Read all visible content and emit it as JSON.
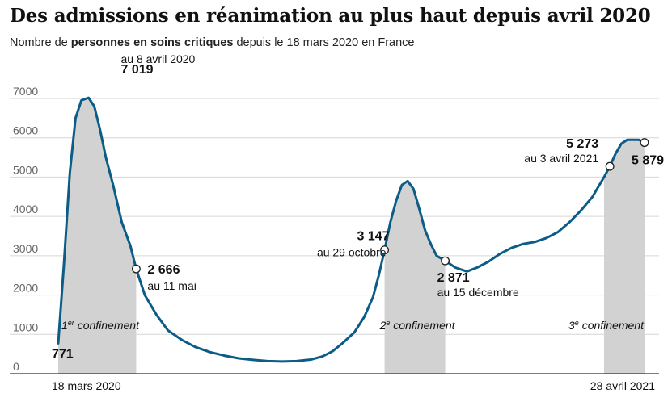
{
  "header": {
    "title": "Des admissions en réanimation au plus haut depuis avril 2020",
    "subtitle_pre": "Nombre de ",
    "subtitle_bold": "personnes en soins critiques",
    "subtitle_post": " depuis le 18 mars 2020 en France"
  },
  "chart_data": {
    "type": "line",
    "title": "Des admissions en réanimation au plus haut depuis avril 2020",
    "ylabel": "Nombre de personnes en soins critiques",
    "xlabel": "",
    "x_start_date": "2020-03-18",
    "x_end_date": "2021-04-28",
    "ylim": [
      0,
      7000
    ],
    "yticks": [
      0,
      1000,
      2000,
      3000,
      4000,
      5000,
      6000,
      7000
    ],
    "ytick_labels": [
      "0",
      "1000",
      "2000",
      "3000",
      "4000",
      "5000",
      "6000",
      "7000"
    ],
    "xtick_labels": [
      {
        "day": 0,
        "label": "18 mars 2020"
      },
      {
        "day": 406,
        "label": "28 avril 2021"
      }
    ],
    "series": [
      {
        "name": "Personnes en soins critiques",
        "color": "#0b5c86",
        "points": [
          [
            0,
            771
          ],
          [
            4,
            2800
          ],
          [
            8,
            5100
          ],
          [
            12,
            6500
          ],
          [
            16,
            6950
          ],
          [
            21,
            7019
          ],
          [
            25,
            6800
          ],
          [
            29,
            6200
          ],
          [
            33,
            5500
          ],
          [
            38,
            4800
          ],
          [
            44,
            3850
          ],
          [
            50,
            3250
          ],
          [
            54,
            2666
          ],
          [
            60,
            2000
          ],
          [
            68,
            1500
          ],
          [
            76,
            1100
          ],
          [
            86,
            850
          ],
          [
            95,
            680
          ],
          [
            105,
            550
          ],
          [
            115,
            460
          ],
          [
            125,
            390
          ],
          [
            135,
            350
          ],
          [
            145,
            320
          ],
          [
            155,
            310
          ],
          [
            165,
            320
          ],
          [
            175,
            360
          ],
          [
            183,
            440
          ],
          [
            190,
            570
          ],
          [
            197,
            780
          ],
          [
            205,
            1050
          ],
          [
            212,
            1450
          ],
          [
            218,
            1950
          ],
          [
            222,
            2500
          ],
          [
            226,
            3147
          ],
          [
            230,
            3850
          ],
          [
            234,
            4400
          ],
          [
            238,
            4800
          ],
          [
            242,
            4900
          ],
          [
            246,
            4700
          ],
          [
            250,
            4200
          ],
          [
            254,
            3650
          ],
          [
            258,
            3300
          ],
          [
            262,
            3000
          ],
          [
            268,
            2871
          ],
          [
            275,
            2700
          ],
          [
            283,
            2600
          ],
          [
            290,
            2700
          ],
          [
            298,
            2850
          ],
          [
            306,
            3050
          ],
          [
            314,
            3200
          ],
          [
            322,
            3300
          ],
          [
            330,
            3350
          ],
          [
            338,
            3450
          ],
          [
            346,
            3600
          ],
          [
            354,
            3850
          ],
          [
            362,
            4150
          ],
          [
            370,
            4500
          ],
          [
            378,
            5000
          ],
          [
            382,
            5273
          ],
          [
            386,
            5600
          ],
          [
            390,
            5850
          ],
          [
            394,
            5950
          ],
          [
            398,
            5950
          ],
          [
            402,
            5950
          ],
          [
            406,
            5879
          ]
        ]
      }
    ],
    "shaded_periods": [
      {
        "label": "1er confinement",
        "ordinal": "1",
        "suffix": "er",
        "text": " confinement",
        "start_day": 0,
        "end_day": 54
      },
      {
        "label": "2e confinement",
        "ordinal": "2",
        "suffix": "e",
        "text": " confinement",
        "start_day": 226,
        "end_day": 268
      },
      {
        "label": "3e confinement",
        "ordinal": "3",
        "suffix": "e",
        "text": " confinement",
        "start_day": 378,
        "end_day": 406
      }
    ],
    "annotations": [
      {
        "id": "start",
        "day": 0,
        "value": 771,
        "value_label": "771",
        "date_label": "",
        "marker": false
      },
      {
        "id": "peak-1",
        "day": 21,
        "value": 7019,
        "value_label": "7 019",
        "date_label": "au 8 avril 2020",
        "marker": false
      },
      {
        "id": "may-11",
        "day": 54,
        "value": 2666,
        "value_label": "2 666",
        "date_label": "au 11 mai",
        "marker": true
      },
      {
        "id": "oct-29",
        "day": 226,
        "value": 3147,
        "value_label": "3 147",
        "date_label": "au 29 octobre",
        "marker": true
      },
      {
        "id": "dec-15",
        "day": 268,
        "value": 2871,
        "value_label": "2 871",
        "date_label": "au 15 décembre",
        "marker": true
      },
      {
        "id": "apr-3",
        "day": 382,
        "value": 5273,
        "value_label": "5 273",
        "date_label": "au 3 avril 2021",
        "marker": true
      },
      {
        "id": "end",
        "day": 406,
        "value": 5879,
        "value_label": "5 879",
        "date_label": "",
        "marker": true
      }
    ]
  }
}
